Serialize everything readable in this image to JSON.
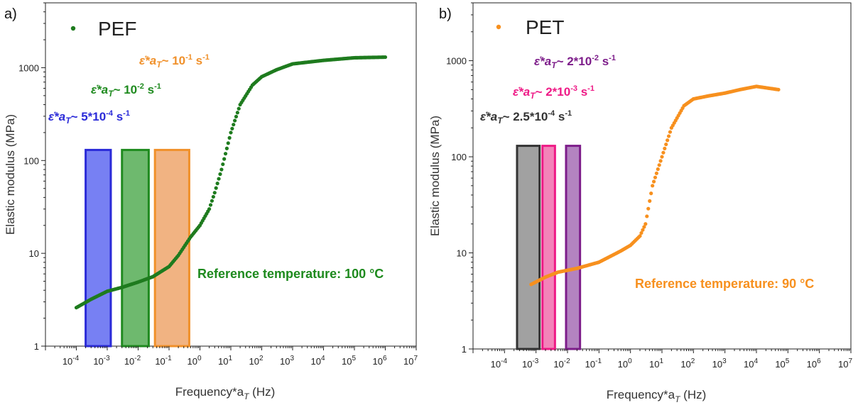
{
  "chart_data": [
    {
      "type": "scatter",
      "panel_label": "a)",
      "legend_label": "PEF",
      "xlabel": "Frequency*a",
      "xlabel_sub": "T",
      "xlabel_unit": " (Hz)",
      "ylabel": "Elastic modulus (MPa)",
      "x_scale": "log",
      "y_scale": "log",
      "xlim": [
        1e-05,
        10000000
      ],
      "ylim": [
        1,
        5000
      ],
      "x_ticks": [
        0.0001,
        0.001,
        0.01,
        0.1,
        1,
        10,
        100,
        1000,
        10000,
        100000,
        1000000,
        10000000
      ],
      "x_tick_exponents": [
        "-4",
        "-3",
        "-2",
        "-1",
        "0",
        "1",
        "2",
        "3",
        "4",
        "5",
        "6",
        "7"
      ],
      "y_ticks": [
        1,
        10,
        100,
        1000
      ],
      "y_tick_labels": [
        "1",
        "10",
        "100",
        "1000"
      ],
      "series_color": "#1e7b1e",
      "series": [
        {
          "name": "PEF",
          "x": [
            0.0001,
            0.0003,
            0.001,
            0.003,
            0.01,
            0.03,
            0.1,
            0.2,
            0.5,
            1,
            2,
            3,
            5,
            10,
            20,
            50,
            100,
            300,
            1000,
            10000,
            100000,
            1000000
          ],
          "y": [
            2.6,
            3.2,
            3.9,
            4.3,
            4.9,
            5.6,
            7.2,
            9.5,
            15,
            20,
            30,
            45,
            80,
            200,
            400,
            650,
            800,
            950,
            1100,
            1200,
            1280,
            1300
          ]
        }
      ],
      "rate_windows": [
        {
          "label_prefix": "ε̇*a",
          "label_sub": "T",
          "label_value": "~  5*10",
          "label_exp": "-4",
          "label_unit": " s",
          "label_unit_exp": "-1",
          "color": "#2a2ad8",
          "fill": "#5560f0",
          "x_range": [
            0.0002,
            0.0013
          ],
          "y_range": [
            1,
            130
          ]
        },
        {
          "label_prefix": "ε̇*a",
          "label_sub": "T",
          "label_value": "~  10",
          "label_exp": "-2",
          "label_unit": " s",
          "label_unit_exp": "-1",
          "color": "#1e8a1e",
          "fill": "#4aa84a",
          "x_range": [
            0.003,
            0.022
          ],
          "y_range": [
            1,
            130
          ]
        },
        {
          "label_prefix": "ε̇*a",
          "label_sub": "T",
          "label_value": "~  10",
          "label_exp": "-1",
          "label_unit": " s",
          "label_unit_exp": "-1",
          "color": "#f0902a",
          "fill": "#eea063",
          "x_range": [
            0.035,
            0.45
          ],
          "y_range": [
            1,
            130
          ]
        }
      ],
      "reference_label": "Reference temperature: 100 °C",
      "reference_color": "#1e8a1e"
    },
    {
      "type": "scatter",
      "panel_label": "b)",
      "legend_label": "PET",
      "xlabel": "Frequency*a",
      "xlabel_sub": "T",
      "xlabel_unit": " (Hz)",
      "ylabel": "Elastic modulus (MPa)",
      "x_scale": "log",
      "y_scale": "log",
      "xlim": [
        1e-05,
        10000000
      ],
      "ylim": [
        1,
        4000
      ],
      "x_ticks": [
        0.0001,
        0.001,
        0.01,
        0.1,
        1,
        10,
        100,
        1000,
        10000,
        100000,
        1000000,
        10000000
      ],
      "x_tick_exponents": [
        "-4",
        "-3",
        "-2",
        "-1",
        "0",
        "1",
        "2",
        "3",
        "4",
        "5",
        "6",
        "7"
      ],
      "y_ticks": [
        1,
        10,
        100,
        1000
      ],
      "y_tick_labels": [
        "1",
        "10",
        "100",
        "1000"
      ],
      "series_color": "#f7901e",
      "series": [
        {
          "name": "PET",
          "x": [
            0.0007,
            0.002,
            0.005,
            0.02,
            0.1,
            0.5,
            1,
            2,
            3,
            5,
            10,
            20,
            50,
            100,
            300,
            1000,
            3000,
            10000,
            50000
          ],
          "y": [
            4.7,
            5.6,
            6.3,
            6.9,
            8.0,
            10.5,
            12,
            15,
            20,
            50,
            100,
            200,
            340,
            400,
            430,
            460,
            500,
            540,
            500
          ]
        }
      ],
      "rate_windows": [
        {
          "label_prefix": "ε̇*a",
          "label_sub": "T",
          "label_value": "~  2.5*10",
          "label_exp": "-4",
          "label_unit": " s",
          "label_unit_exp": "-1",
          "color": "#333333",
          "fill": "#8a8a8a",
          "x_range": [
            0.00025,
            0.0013
          ],
          "y_range": [
            1,
            130
          ]
        },
        {
          "label_prefix": "ε̇*a",
          "label_sub": "T",
          "label_value": "~  2*10",
          "label_exp": "-3",
          "label_unit": " s",
          "label_unit_exp": "-1",
          "color": "#ee1a86",
          "fill": "#f064a8",
          "x_range": [
            0.0016,
            0.004
          ],
          "y_range": [
            1,
            130
          ]
        },
        {
          "label_prefix": "ε̇*a",
          "label_sub": "T",
          "label_value": "~  2*10",
          "label_exp": "-2",
          "label_unit": " s",
          "label_unit_exp": "-1",
          "color": "#7d1d8a",
          "fill": "#a064b0",
          "x_range": [
            0.009,
            0.025
          ],
          "y_range": [
            1,
            130
          ]
        }
      ],
      "reference_label": "Reference temperature: 90 °C",
      "reference_color": "#f7901e"
    }
  ]
}
